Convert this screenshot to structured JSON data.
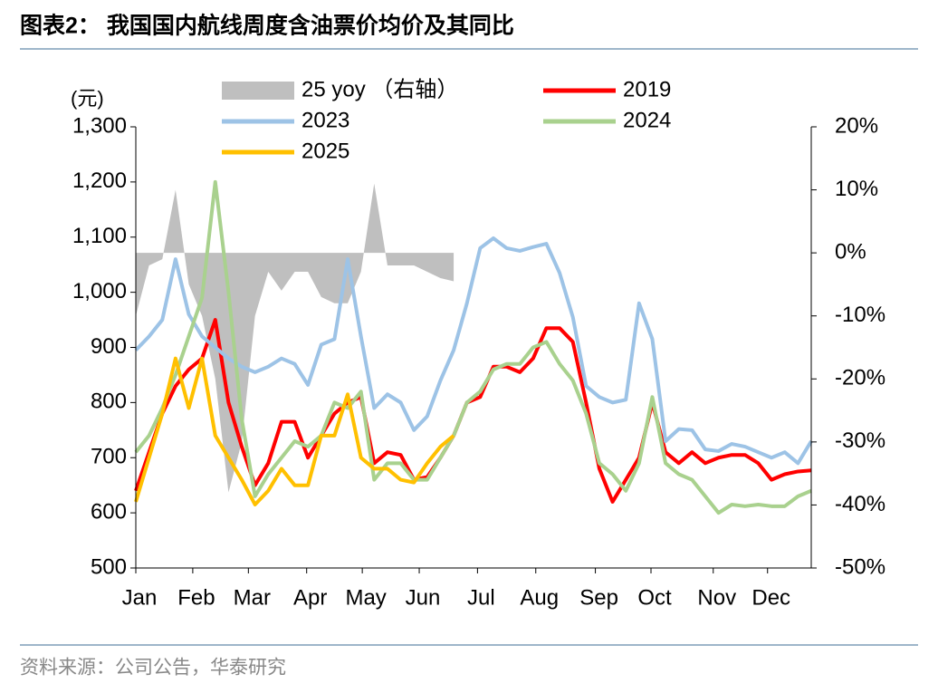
{
  "title": "图表2：  我国国内航线周度含油票价均价及其同比",
  "source": "资料来源：公司公告，华泰研究",
  "chart_data": {
    "type": "line",
    "y_unit": "(元)",
    "x": [
      1,
      2,
      3,
      4,
      5,
      6,
      7,
      8,
      9,
      10,
      11,
      12,
      13,
      14,
      15,
      16,
      17,
      18,
      19,
      20,
      21,
      22,
      23,
      24,
      25,
      26,
      27,
      28,
      29,
      30,
      31,
      32,
      33,
      34,
      35,
      36,
      37,
      38,
      39,
      40,
      41,
      42,
      43,
      44,
      45,
      46,
      47,
      48,
      49,
      50,
      51,
      52
    ],
    "xlim": [
      1,
      52
    ],
    "xticks": [
      {
        "value": 1,
        "label": "Jan"
      },
      {
        "value": 5.3,
        "label": "Feb"
      },
      {
        "value": 9.5,
        "label": "Mar"
      },
      {
        "value": 13.9,
        "label": "Apr"
      },
      {
        "value": 18.1,
        "label": "May"
      },
      {
        "value": 22.4,
        "label": "Jun"
      },
      {
        "value": 26.8,
        "label": "Jul"
      },
      {
        "value": 31.2,
        "label": "Aug"
      },
      {
        "value": 35.7,
        "label": "Sep"
      },
      {
        "value": 39.9,
        "label": "Oct"
      },
      {
        "value": 44.6,
        "label": "Nov"
      },
      {
        "value": 48.7,
        "label": "Dec"
      }
    ],
    "ylim": [
      500,
      1300
    ],
    "yticks": [
      500,
      600,
      700,
      800,
      900,
      {
        "value": 1000,
        "label": "1,000"
      },
      {
        "value": 1100,
        "label": "1,100"
      },
      {
        "value": 1200,
        "label": "1,200"
      },
      {
        "value": 1300,
        "label": "1,300"
      }
    ],
    "y2lim": [
      -50,
      20
    ],
    "y2ticks": [
      {
        "value": -50,
        "label": "-50%"
      },
      {
        "value": -40,
        "label": "-40%"
      },
      {
        "value": -30,
        "label": "-30%"
      },
      {
        "value": -20,
        "label": "-20%"
      },
      {
        "value": -10,
        "label": "-10%"
      },
      {
        "value": 0,
        "label": "0%"
      },
      {
        "value": 10,
        "label": "10%"
      },
      {
        "value": 20,
        "label": "20%"
      }
    ],
    "series": [
      {
        "name": "25 yoy （右轴）",
        "type": "area",
        "axis": "y2",
        "color": "#bfbfbf",
        "values": [
          -10,
          -2,
          -1,
          10,
          -5,
          -10,
          -20,
          -38,
          -30,
          -10,
          -3,
          -6,
          -3,
          -3,
          -7,
          -8,
          -8,
          -3,
          11,
          -2,
          -2,
          -2,
          -3,
          -4,
          -4.5,
          null,
          null,
          null,
          null,
          null,
          null,
          null,
          null,
          null,
          null,
          null,
          null,
          null,
          null,
          null,
          null,
          null,
          null,
          null,
          null,
          null,
          null,
          null,
          null,
          null,
          null,
          null
        ]
      },
      {
        "name": "2019",
        "color": "#ff0000",
        "values": [
          640,
          710,
          780,
          830,
          860,
          880,
          950,
          800,
          720,
          650,
          690,
          765,
          765,
          700,
          740,
          780,
          800,
          810,
          690,
          710,
          705,
          660,
          665,
          700,
          740,
          800,
          810,
          865,
          865,
          855,
          880,
          935,
          935,
          910,
          800,
          680,
          620,
          660,
          700,
          800,
          710,
          690,
          710,
          690,
          700,
          705,
          705,
          690,
          660,
          670,
          675,
          677
        ]
      },
      {
        "name": "2023",
        "color": "#9dc3e6",
        "values": [
          895,
          920,
          950,
          1060,
          960,
          920,
          900,
          880,
          865,
          855,
          865,
          880,
          870,
          832,
          905,
          915,
          1060,
          920,
          790,
          815,
          800,
          750,
          775,
          840,
          895,
          980,
          1080,
          1098,
          1080,
          1075,
          1082,
          1088,
          1035,
          955,
          830,
          810,
          800,
          805,
          980,
          915,
          730,
          752,
          750,
          715,
          712,
          725,
          720,
          710,
          700,
          710,
          690,
          730
        ]
      },
      {
        "name": "2024",
        "color": "#a9d18e",
        "values": [
          710,
          740,
          790,
          850,
          920,
          990,
          1200,
          1000,
          770,
          630,
          670,
          700,
          730,
          720,
          740,
          800,
          790,
          820,
          660,
          690,
          690,
          660,
          660,
          700,
          740,
          800,
          820,
          860,
          870,
          870,
          900,
          910,
          870,
          840,
          780,
          690,
          670,
          640,
          690,
          810,
          690,
          670,
          660,
          630,
          600,
          615,
          612,
          615,
          612,
          612,
          630,
          640
        ]
      },
      {
        "name": "2025",
        "color": "#ffc000",
        "values": [
          620,
          700,
          780,
          880,
          790,
          880,
          740,
          700,
          660,
          615,
          640,
          680,
          650,
          650,
          740,
          740,
          815,
          700,
          680,
          680,
          660,
          655,
          690,
          720,
          740,
          null,
          null,
          null,
          null,
          null,
          null,
          null,
          null,
          null,
          null,
          null,
          null,
          null,
          null,
          null,
          null,
          null,
          null,
          null,
          null,
          null,
          null,
          null,
          null,
          null,
          null,
          null
        ]
      }
    ]
  }
}
